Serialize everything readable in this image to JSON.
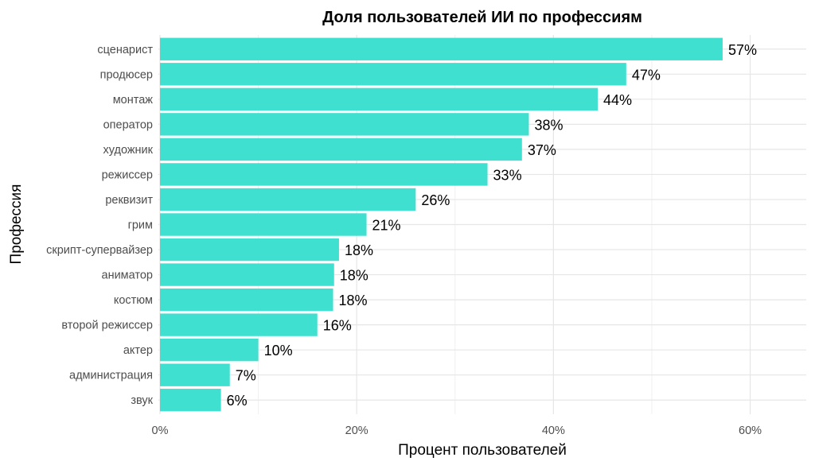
{
  "chart_data": {
    "type": "bar",
    "orientation": "horizontal",
    "title": "Доля пользователей ИИ по профессиям",
    "xlabel": "Процент пользователей",
    "ylabel": "Профессия",
    "categories": [
      "сценарист",
      "продюсер",
      "монтаж",
      "оператор",
      "художник",
      "режиссер",
      "реквизит",
      "грим",
      "скрипт-супервайзер",
      "аниматор",
      "костюм",
      "второй режиссер",
      "актер",
      "администрация",
      "звук"
    ],
    "values": [
      57.2,
      47.4,
      44.5,
      37.5,
      36.8,
      33.3,
      26.0,
      21.0,
      18.2,
      17.7,
      17.6,
      16.0,
      10.0,
      7.1,
      6.2
    ],
    "data_labels": [
      "57%",
      "47%",
      "44%",
      "38%",
      "37%",
      "33%",
      "26%",
      "21%",
      "18%",
      "18%",
      "18%",
      "16%",
      "10%",
      "7%",
      "6%"
    ],
    "xlim": [
      0,
      65.7
    ],
    "xticks": [
      0,
      20,
      40,
      60
    ],
    "xtick_labels": [
      "0%",
      "20%",
      "40%",
      "60%"
    ],
    "grid": true,
    "legend": "none",
    "bar_color": "#40E0D0"
  }
}
